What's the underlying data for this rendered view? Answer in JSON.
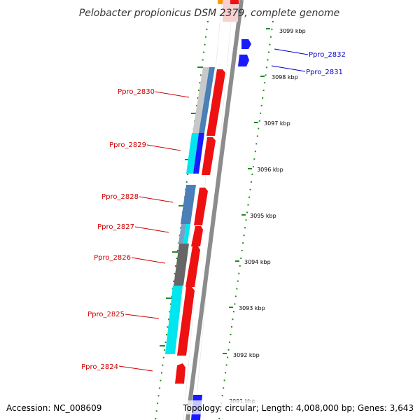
{
  "title": "Pelobacter propionicus DSM 2379, complete genome",
  "footer": {
    "accession": "Accession: NC_008609",
    "summary": "Topology: circular; Length: 4,008,000 bp; Genes: 3,643"
  },
  "colors": {
    "forward_label": "#0000cc",
    "reverse_label": "#cc0000",
    "forward_gene": "#1a1aff",
    "reverse_gene": "#ee1111",
    "backbone": "#8c8c8c",
    "ruler_dots": "#228b22",
    "cyan": "#00e5ee",
    "steelblue": "#4a7fb8",
    "dark_gray": "#666666",
    "light_gray": "#c8c8c8"
  },
  "ticks": [
    {
      "label": "3099 kbp"
    },
    {
      "label": "3098 kbp"
    },
    {
      "label": "3097 kbp"
    },
    {
      "label": "3096 kbp"
    },
    {
      "label": "3095 kbp"
    },
    {
      "label": "3094 kbp"
    },
    {
      "label": "3093 kbp"
    },
    {
      "label": "3092 kbp"
    },
    {
      "label": "3091 kbp"
    }
  ],
  "genes_forward": [
    {
      "label": "Ppro_2832"
    },
    {
      "label": "Ppro_2831"
    }
  ],
  "genes_reverse": [
    {
      "label": "Ppro_2830"
    },
    {
      "label": "Ppro_2829"
    },
    {
      "label": "Ppro_2828"
    },
    {
      "label": "Ppro_2827"
    },
    {
      "label": "Ppro_2826"
    },
    {
      "label": "Ppro_2825"
    },
    {
      "label": "Ppro_2824"
    }
  ]
}
